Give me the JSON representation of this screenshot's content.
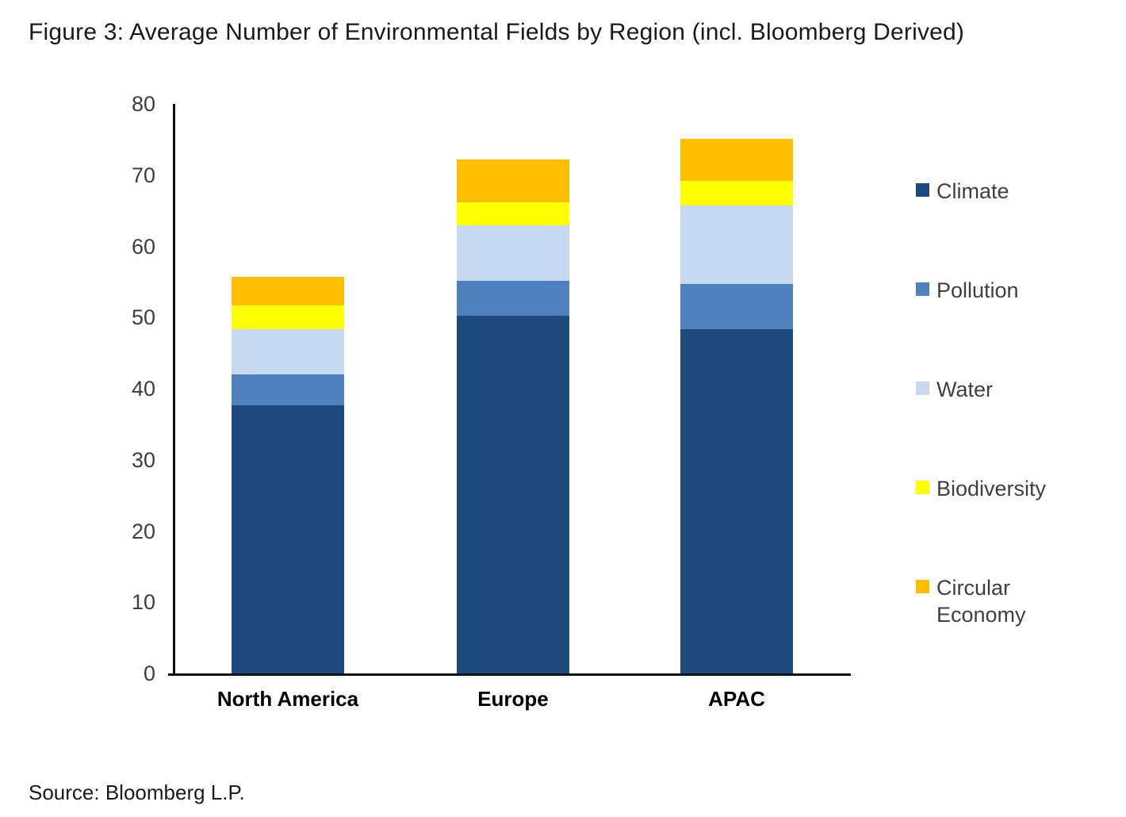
{
  "title": "Figure 3: Average Number of Environmental Fields by Region (incl. Bloomberg Derived)",
  "source": "Source: Bloomberg L.P.",
  "chart_data": {
    "type": "bar",
    "stacked": true,
    "title": "Figure 3: Average Number of Environmental Fields by Region (incl. Bloomberg Derived)",
    "xlabel": "",
    "ylabel": "",
    "categories": [
      "North America",
      "Europe",
      "APAC"
    ],
    "series": [
      {
        "name": "Climate",
        "color": "#1F4A7E",
        "values": [
          37.6,
          50.3,
          48.3
        ]
      },
      {
        "name": "Pollution",
        "color": "#4E81BD",
        "values": [
          4.4,
          4.9,
          6.4
        ]
      },
      {
        "name": "Water",
        "color": "#C7D9F0",
        "values": [
          6.3,
          7.7,
          11.0
        ]
      },
      {
        "name": "Biodiversity",
        "color": "#FFFF00",
        "values": [
          3.4,
          3.3,
          3.5
        ]
      },
      {
        "name": "Circular Economy",
        "color": "#FDBE00",
        "values": [
          4.0,
          6.0,
          5.9
        ]
      }
    ],
    "stack_totals": [
      55.7,
      72.2,
      75.1
    ],
    "ylim": [
      0,
      80
    ],
    "yticks": [
      0,
      10,
      20,
      30,
      40,
      50,
      60,
      70,
      80
    ],
    "grid": false,
    "legend_position": "right",
    "legend_entries": [
      "Climate",
      "Pollution",
      "Water",
      "Biodiversity",
      "Circular Economy"
    ]
  }
}
